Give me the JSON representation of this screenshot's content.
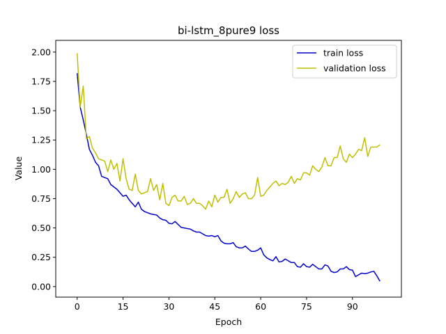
{
  "chart_data": {
    "type": "line",
    "title": "bi-lstm_8pure9 loss",
    "xlabel": "Epoch",
    "ylabel": "Value",
    "xlim": [
      -7,
      106
    ],
    "ylim": [
      -0.09,
      2.1
    ],
    "xticks": [
      0,
      15,
      30,
      45,
      60,
      75,
      90
    ],
    "yticks": [
      0.0,
      0.25,
      0.5,
      0.75,
      1.0,
      1.25,
      1.5,
      1.75,
      2.0
    ],
    "ytick_labels": [
      "0.00",
      "0.25",
      "0.50",
      "0.75",
      "1.00",
      "1.25",
      "1.50",
      "1.75",
      "2.00"
    ],
    "grid": false,
    "legend_position": "top-right",
    "series": [
      {
        "name": "train loss",
        "color": "#0000cc",
        "values": [
          1.82,
          1.53,
          1.42,
          1.3,
          1.17,
          1.12,
          1.06,
          1.03,
          0.94,
          0.93,
          0.92,
          0.87,
          0.85,
          0.83,
          0.8,
          0.77,
          0.78,
          0.74,
          0.71,
          0.68,
          0.72,
          0.66,
          0.64,
          0.63,
          0.62,
          0.615,
          0.61,
          0.585,
          0.57,
          0.565,
          0.54,
          0.535,
          0.555,
          0.53,
          0.505,
          0.5,
          0.495,
          0.49,
          0.475,
          0.465,
          0.465,
          0.45,
          0.435,
          0.43,
          0.435,
          0.425,
          0.435,
          0.39,
          0.37,
          0.365,
          0.365,
          0.375,
          0.34,
          0.33,
          0.33,
          0.345,
          0.32,
          0.3,
          0.3,
          0.31,
          0.33,
          0.27,
          0.245,
          0.23,
          0.22,
          0.255,
          0.21,
          0.215,
          0.235,
          0.22,
          0.205,
          0.205,
          0.17,
          0.165,
          0.195,
          0.17,
          0.165,
          0.19,
          0.17,
          0.15,
          0.15,
          0.185,
          0.175,
          0.13,
          0.12,
          0.125,
          0.15,
          0.15,
          0.17,
          0.145,
          0.14,
          0.085,
          0.1,
          0.115,
          0.11,
          0.115,
          0.125,
          0.13,
          0.09,
          0.045
        ]
      },
      {
        "name": "validation loss",
        "color": "#bfbf00",
        "values": [
          1.99,
          1.53,
          1.71,
          1.26,
          1.28,
          1.18,
          1.14,
          1.09,
          1.08,
          1.07,
          0.98,
          1.08,
          1.0,
          1.05,
          0.9,
          1.09,
          0.92,
          0.83,
          0.82,
          0.96,
          0.82,
          0.79,
          0.8,
          0.81,
          0.92,
          0.82,
          0.87,
          0.74,
          0.88,
          0.71,
          0.69,
          0.76,
          0.78,
          0.73,
          0.73,
          0.77,
          0.7,
          0.71,
          0.75,
          0.71,
          0.71,
          0.69,
          0.66,
          0.73,
          0.68,
          0.78,
          0.72,
          0.76,
          0.76,
          0.83,
          0.71,
          0.75,
          0.81,
          0.76,
          0.79,
          0.8,
          0.75,
          0.75,
          0.78,
          0.93,
          0.77,
          0.78,
          0.82,
          0.85,
          0.88,
          0.9,
          0.86,
          0.88,
          0.87,
          0.89,
          0.94,
          0.88,
          0.92,
          0.91,
          0.97,
          0.97,
          0.95,
          1.03,
          1.0,
          0.98,
          1.02,
          1.1,
          1.03,
          1.03,
          1.1,
          1.1,
          1.2,
          1.09,
          1.06,
          1.13,
          1.1,
          1.13,
          1.17,
          1.16,
          1.27,
          1.11,
          1.19,
          1.19,
          1.19,
          1.21
        ]
      }
    ]
  }
}
